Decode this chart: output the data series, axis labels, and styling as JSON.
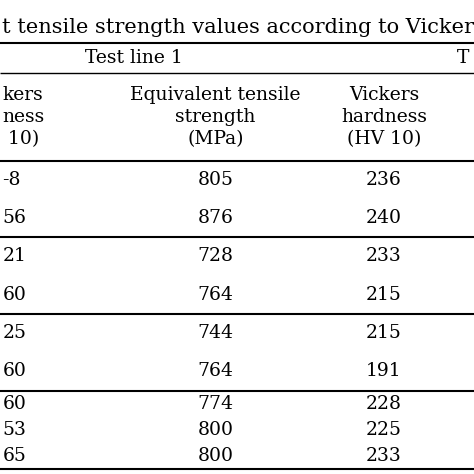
{
  "title": "t tensile strength values according to Vickers ha",
  "section_header": "Test line 1",
  "col1_header": [
    "kers",
    "ness",
    " 10)"
  ],
  "col2_header": [
    "Equivalent tensile",
    "strength",
    "(MPa)"
  ],
  "col3_header": [
    "Vickers",
    "hardness",
    "(HV 10)"
  ],
  "col1_partial": [
    "-8",
    "56",
    "21",
    "60",
    "25",
    "60",
    "60",
    "53",
    "65"
  ],
  "col2_values": [
    "805",
    "876",
    "728",
    "764",
    "744",
    "764",
    "774",
    "800",
    "800"
  ],
  "col3_values": [
    "236",
    "240",
    "233",
    "215",
    "215",
    "191",
    "228",
    "225",
    "233"
  ],
  "bg_color": "#ffffff",
  "text_color": "#000000",
  "line_color": "#000000",
  "font_size": 13.5,
  "title_font_size": 15
}
